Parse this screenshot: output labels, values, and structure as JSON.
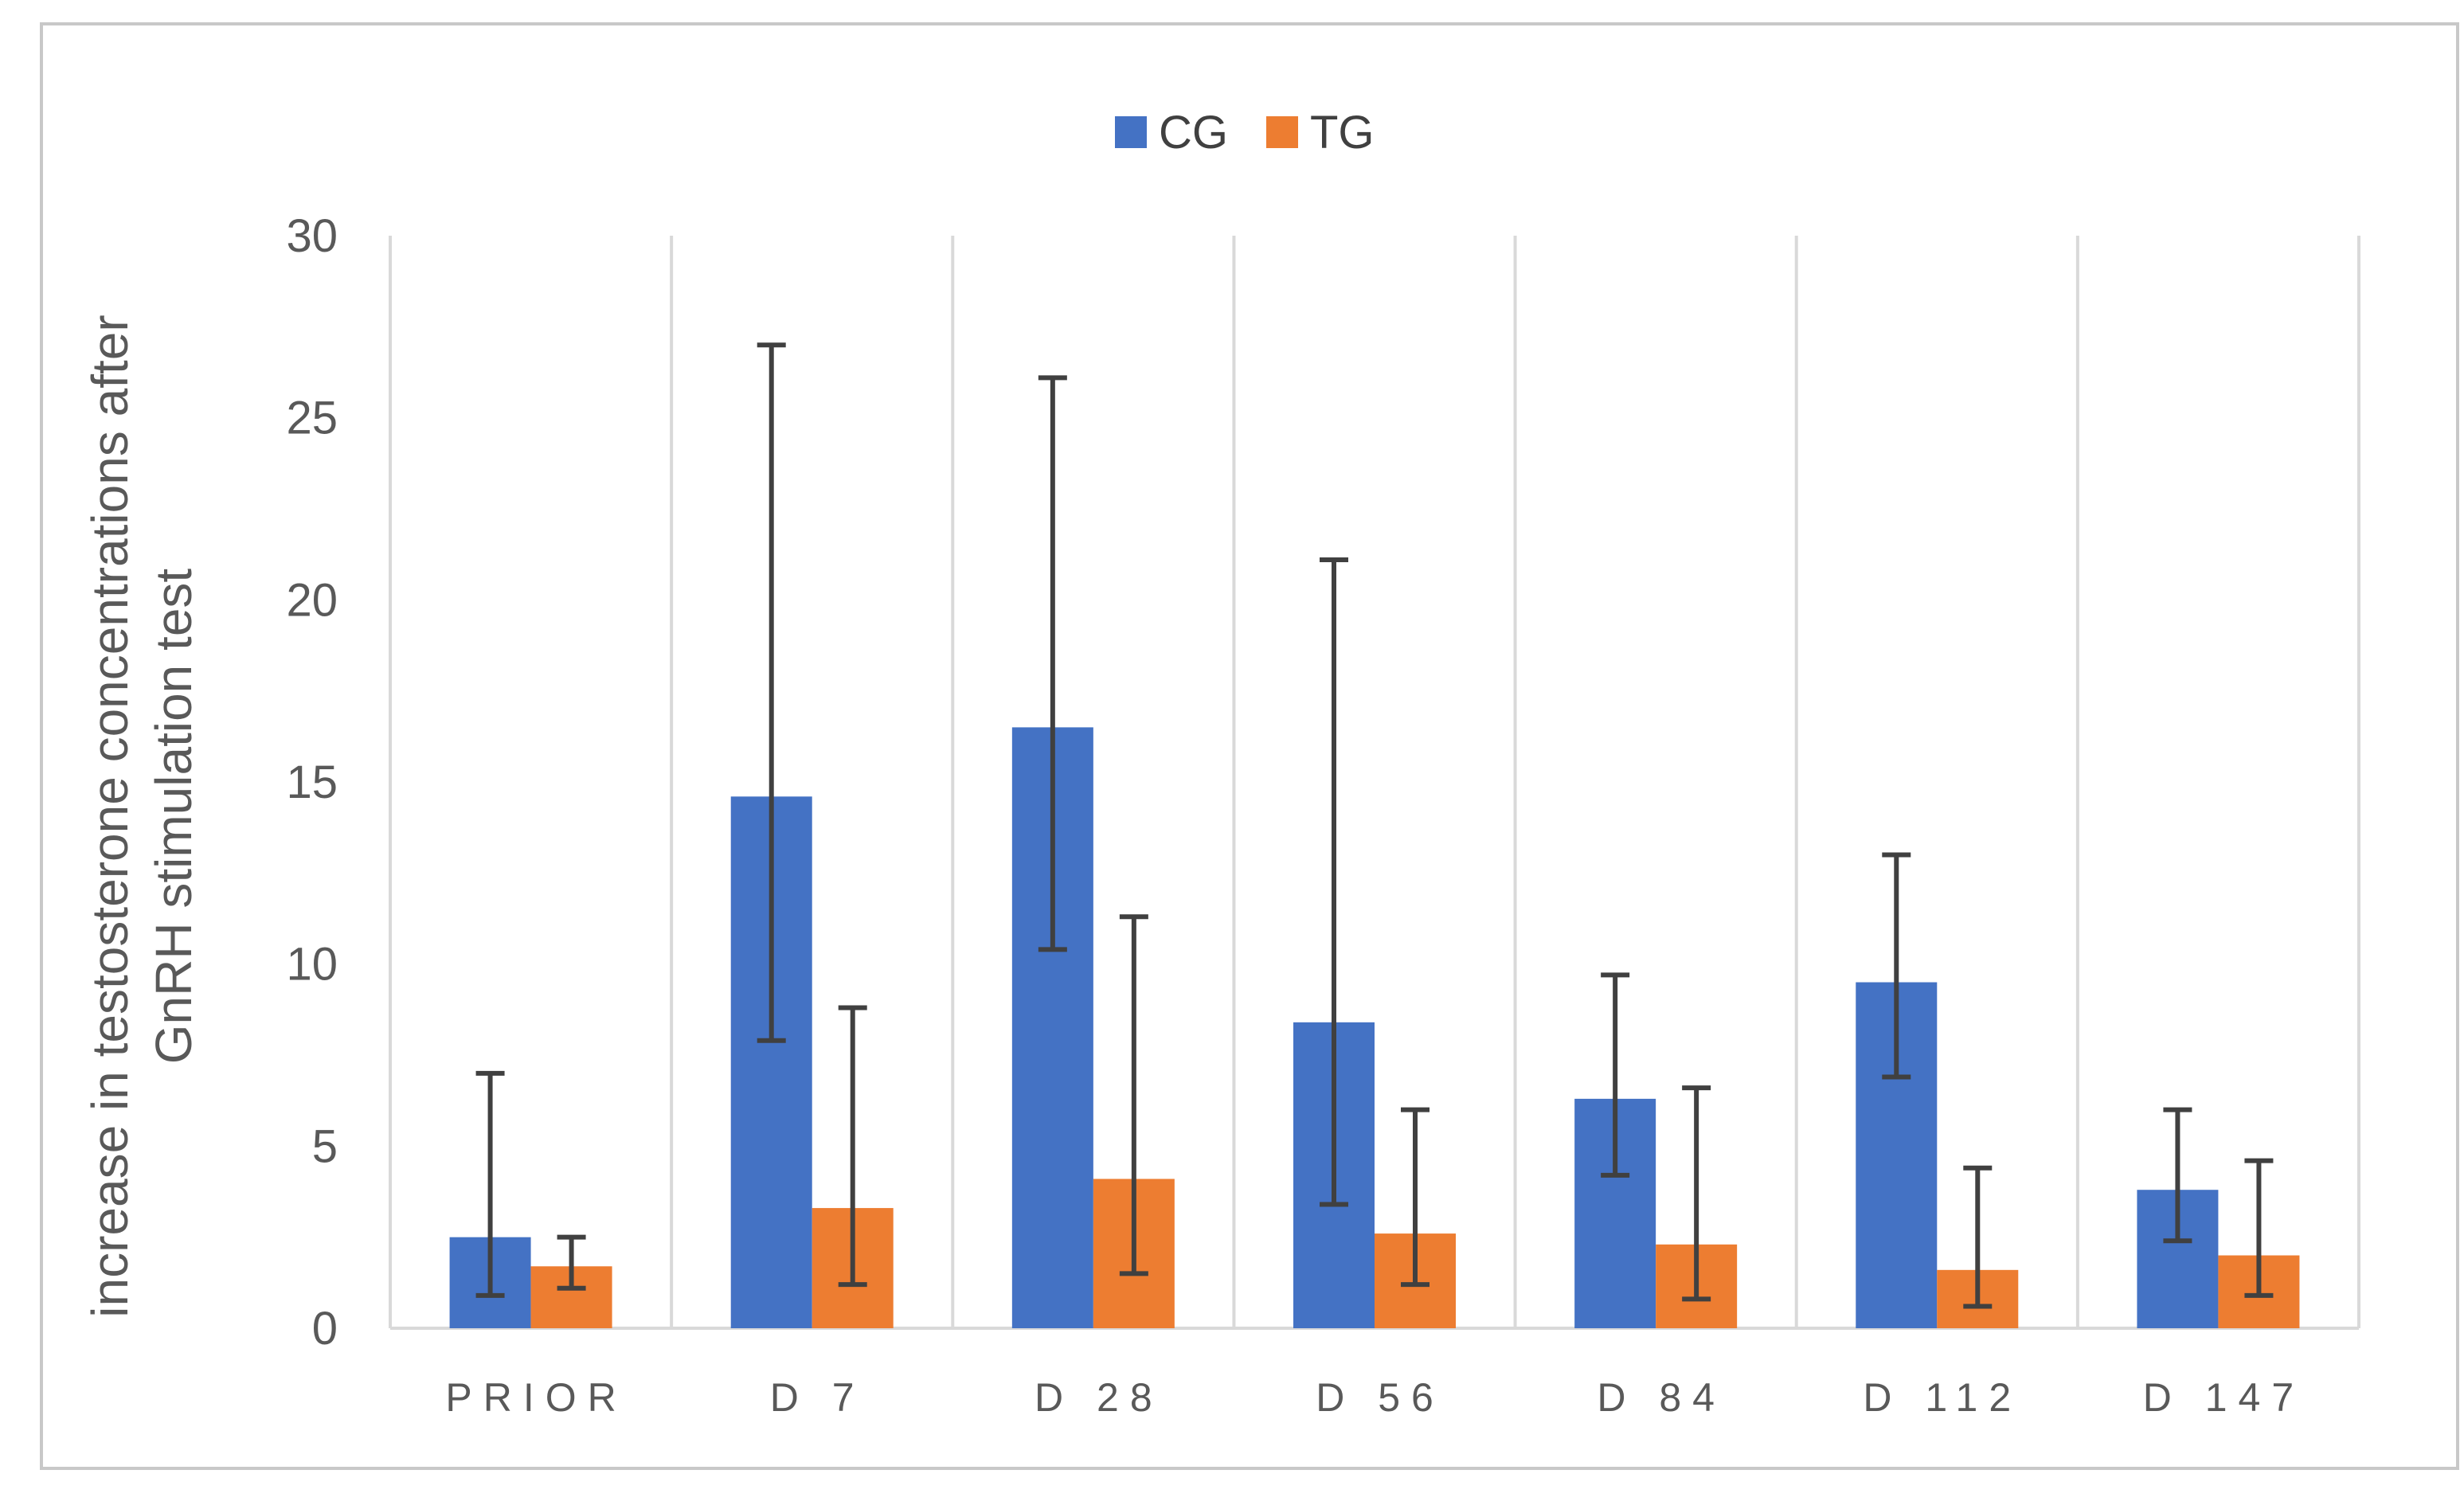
{
  "chart_data": {
    "type": "bar",
    "title": "",
    "xlabel": "",
    "ylabel": [
      "increase in testosterone concentrations after",
      "GnRH stimulation test"
    ],
    "ylim": [
      0,
      30
    ],
    "yticks": [
      0,
      5,
      10,
      15,
      20,
      25,
      30
    ],
    "grid": "vertical separators between categories",
    "legend_position": "top-center",
    "categories": [
      "PRIOR",
      "D 7",
      "D 28",
      "D 56",
      "D 84",
      "D 112",
      "D 147"
    ],
    "series": [
      {
        "name": "CG",
        "color": "#4472c4",
        "values": [
          2.5,
          14.6,
          16.5,
          8.4,
          6.3,
          9.5,
          3.8
        ],
        "error_low": [
          0.9,
          7.9,
          10.4,
          3.4,
          4.2,
          6.9,
          2.4
        ],
        "error_high": [
          7.0,
          27.0,
          26.1,
          21.1,
          9.7,
          13.0,
          6.0
        ]
      },
      {
        "name": "TG",
        "color": "#ed7d31",
        "values": [
          1.7,
          3.3,
          4.1,
          2.6,
          2.3,
          1.6,
          2.0
        ],
        "error_low": [
          1.1,
          1.2,
          1.5,
          1.2,
          0.8,
          0.6,
          0.9
        ],
        "error_high": [
          2.5,
          8.8,
          11.3,
          6.0,
          6.6,
          4.4,
          4.6
        ]
      }
    ]
  }
}
